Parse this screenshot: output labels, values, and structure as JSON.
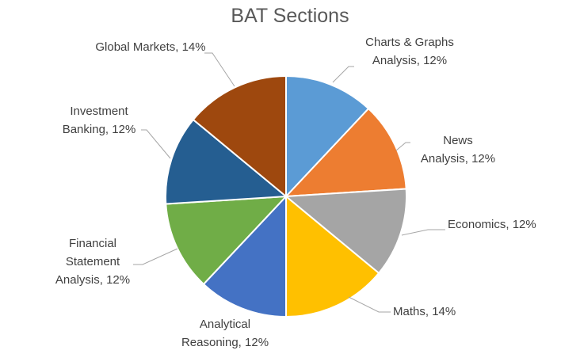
{
  "chart_data": {
    "type": "pie",
    "title": "BAT Sections",
    "categories": [
      "Charts & Graphs Analysis",
      "News Analysis",
      "Economics",
      "Maths",
      "Analytical Reasoning",
      "Financial Statement Analysis",
      "Investment Banking",
      "Global Markets"
    ],
    "values": [
      12,
      12,
      12,
      14,
      12,
      12,
      12,
      14
    ],
    "value_labels": [
      "12%",
      "12%",
      "12%",
      "14%",
      "12%",
      "12%",
      "12%",
      "14%"
    ],
    "label_separator": ", ",
    "colors": [
      "#5b9bd5",
      "#ed7d31",
      "#a5a5a5",
      "#ffc000",
      "#4472c4",
      "#70ad47",
      "#255e91",
      "#9e480e"
    ]
  }
}
